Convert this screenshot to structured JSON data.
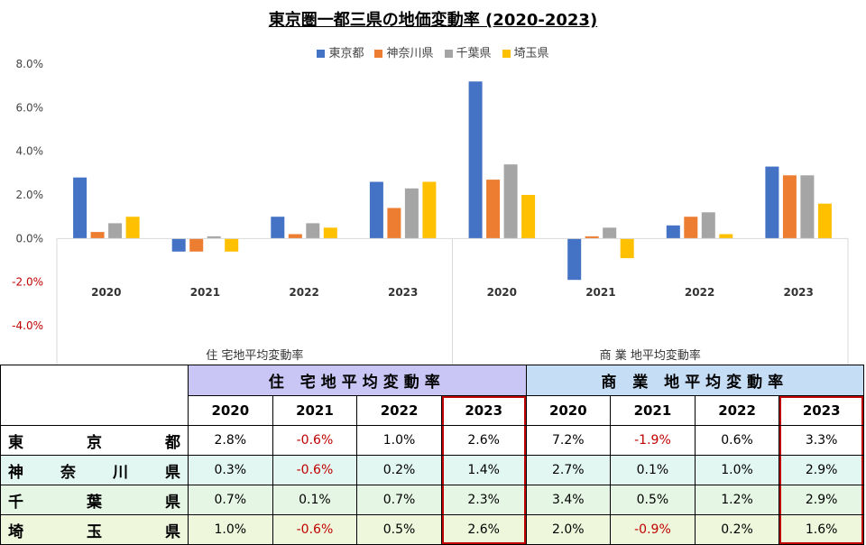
{
  "chart_data": {
    "type": "bar",
    "title": "東京圏一都三県の地価変動率 (2020-2023)",
    "groups": [
      {
        "label": "住 宅地平均変動率",
        "categories": [
          "2020",
          "2021",
          "2022",
          "2023"
        ]
      },
      {
        "label": "商 業 地平均変動率",
        "categories": [
          "2020",
          "2021",
          "2022",
          "2023"
        ]
      }
    ],
    "series": [
      {
        "name": "東京都",
        "color": "#4472c4",
        "values": [
          2.8,
          -0.6,
          1.0,
          2.6,
          7.2,
          -1.9,
          0.6,
          3.3
        ]
      },
      {
        "name": "神奈川県",
        "color": "#ed7d31",
        "values": [
          0.3,
          -0.6,
          0.2,
          1.4,
          2.7,
          0.1,
          1.0,
          2.9
        ]
      },
      {
        "name": "千葉県",
        "color": "#a5a5a5",
        "values": [
          0.7,
          0.1,
          0.7,
          2.3,
          3.4,
          0.5,
          1.2,
          2.9
        ]
      },
      {
        "name": "埼玉県",
        "color": "#ffc000",
        "values": [
          1.0,
          -0.6,
          0.5,
          2.6,
          2.0,
          -0.9,
          0.2,
          1.6
        ]
      }
    ],
    "ylim": [
      -4,
      8
    ],
    "yticks": [
      "8.0%",
      "6.0%",
      "4.0%",
      "2.0%",
      "0.0%",
      "-2.0%",
      "-4.0%"
    ],
    "ytick_values": [
      8,
      6,
      4,
      2,
      0,
      -2,
      -4
    ],
    "legend": "top-center",
    "grid": false
  },
  "table": {
    "group_headers": [
      "住 宅地平均変動率",
      "商 業 地平均変動率"
    ],
    "years": [
      "2020",
      "2021",
      "2022",
      "2023"
    ],
    "rows": [
      {
        "pref": "東京都",
        "cells": [
          "2.8%",
          "-0.6%",
          "1.0%",
          "2.6%",
          "7.2%",
          "-1.9%",
          "0.6%",
          "3.3%"
        ]
      },
      {
        "pref": "神奈川県",
        "cells": [
          "0.3%",
          "-0.6%",
          "0.2%",
          "1.4%",
          "2.7%",
          "0.1%",
          "1.0%",
          "2.9%"
        ]
      },
      {
        "pref": "千葉県",
        "cells": [
          "0.7%",
          "0.1%",
          "0.7%",
          "2.3%",
          "3.4%",
          "0.5%",
          "1.2%",
          "2.9%"
        ]
      },
      {
        "pref": "埼玉県",
        "cells": [
          "1.0%",
          "-0.6%",
          "0.5%",
          "2.6%",
          "2.0%",
          "-0.9%",
          "0.2%",
          "1.6%"
        ]
      }
    ],
    "colors": {
      "negative": "#c00000",
      "highlight": "#c00000"
    }
  }
}
